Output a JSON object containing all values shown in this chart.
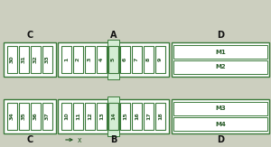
{
  "bg_color": "#cccfbf",
  "fuse_fill": "#ffffff",
  "fuse_border": "#3a7a3a",
  "highlight_fill": "#d4edd4",
  "box_border": "#3a7a3a",
  "text_color": "#2a5c2a",
  "dark_text": "#111111",
  "section_A_label": "A",
  "section_B_label": "B",
  "section_C_top_label": "C",
  "section_C_bot_label": "C",
  "section_D_top_label": "D",
  "section_D_bot_label": "D",
  "top_row_C_fuses": [
    "30",
    "31",
    "32",
    "33"
  ],
  "top_row_A_fuses": [
    "9",
    "8",
    "7",
    "6",
    "5",
    "4",
    "3",
    "2",
    "1"
  ],
  "bot_row_C_fuses": [
    "34",
    "35",
    "36",
    "37"
  ],
  "bot_row_B_fuses": [
    "18",
    "17",
    "16",
    "15",
    "14",
    "13",
    "12",
    "11",
    "10"
  ],
  "M_labels": [
    "M1",
    "M2",
    "M3",
    "M4"
  ],
  "highlight_top_fuse": "5",
  "highlight_bot_fuse": "14",
  "arrow_label": "x",
  "figw": 3.0,
  "figh": 1.63,
  "dpi": 100
}
